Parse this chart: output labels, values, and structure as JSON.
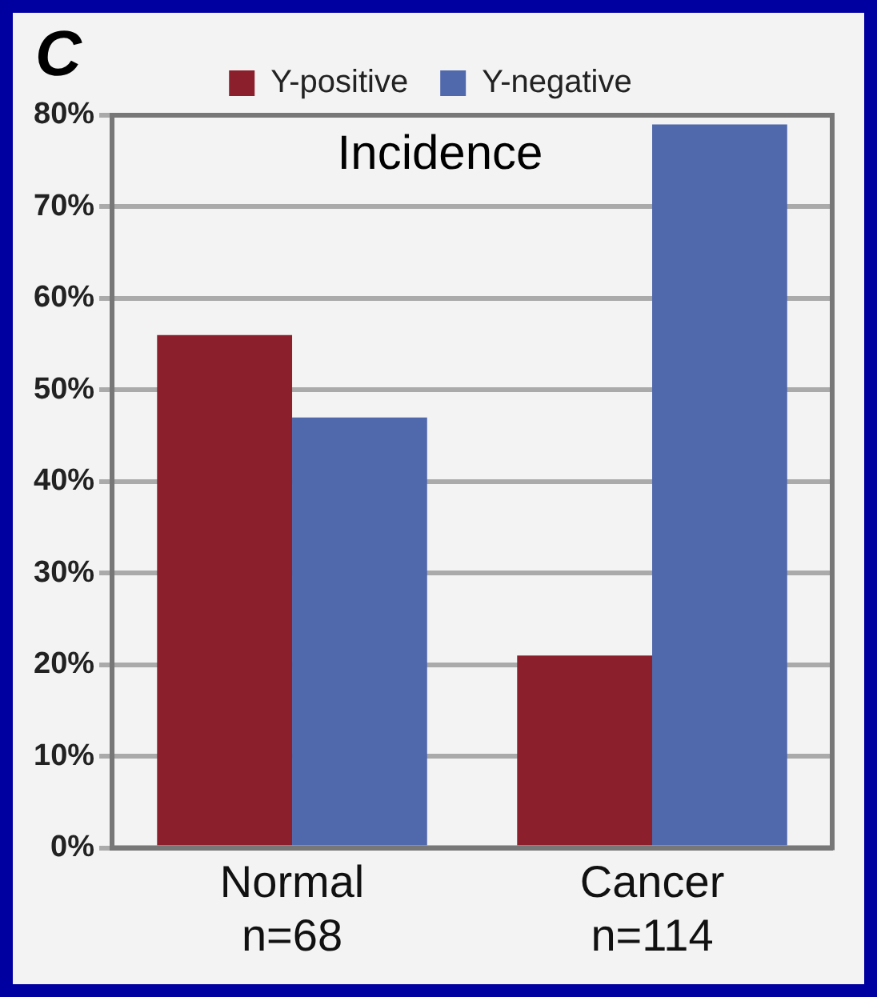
{
  "chart_data": {
    "type": "bar",
    "title": "Incidence",
    "annotations": [
      "C"
    ],
    "categories": [
      "Normal\nn=68",
      "Cancer\nn=114"
    ],
    "series": [
      {
        "name": "Y-positive",
        "color": "#8b1f2c",
        "values": [
          56,
          21
        ]
      },
      {
        "name": "Y-negative",
        "color": "#5068ac",
        "values": [
          47,
          79
        ]
      }
    ],
    "ylim": [
      0,
      80
    ],
    "yticks": [
      {
        "value": 0,
        "label": "0%"
      },
      {
        "value": 10,
        "label": "10%"
      },
      {
        "value": 20,
        "label": "20%"
      },
      {
        "value": 30,
        "label": "30%"
      },
      {
        "value": 40,
        "label": "40%"
      },
      {
        "value": 50,
        "label": "50%"
      },
      {
        "value": 60,
        "label": "60%"
      },
      {
        "value": 70,
        "label": "70%"
      },
      {
        "value": 80,
        "label": "80%"
      }
    ],
    "grid": "y",
    "legend": "top"
  }
}
